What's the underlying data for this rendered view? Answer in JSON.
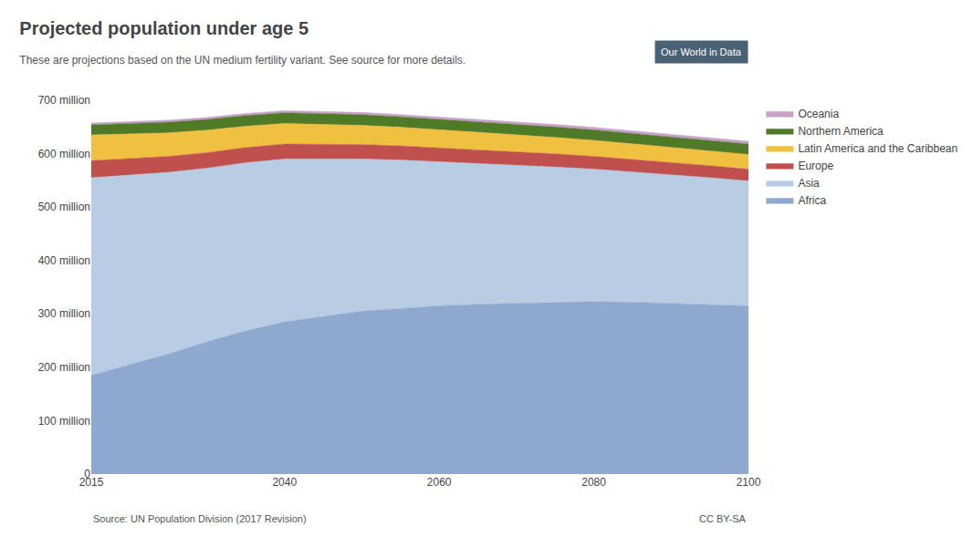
{
  "chart_data": {
    "type": "area",
    "stacked": true,
    "title": "Projected population under age 5",
    "subtitle": "These are projections based on the UN medium fertility variant. See source for more details.",
    "source": "Source: UN Population Division (2017 Revision)",
    "license": "CC BY-SA",
    "annotations": [
      "Our World in Data"
    ],
    "x": [
      2015,
      2020,
      2025,
      2030,
      2035,
      2040,
      2045,
      2050,
      2055,
      2060,
      2065,
      2070,
      2075,
      2080,
      2085,
      2090,
      2095,
      2100
    ],
    "series": [
      {
        "name": "Africa",
        "color": "#8fa8d0",
        "values": [
          185,
          205,
          225,
          248,
          268,
          285,
          295,
          305,
          310,
          315,
          318,
          320,
          322,
          323,
          322,
          320,
          318,
          315
        ]
      },
      {
        "name": "Asia",
        "color": "#b8cce4",
        "values": [
          370,
          355,
          340,
          325,
          315,
          305,
          295,
          285,
          278,
          270,
          263,
          258,
          253,
          248,
          244,
          240,
          237,
          234
        ]
      },
      {
        "name": "Europe",
        "color": "#c0504d",
        "values": [
          32,
          31,
          30,
          29,
          28.5,
          28,
          27.5,
          27,
          26.5,
          26,
          25.5,
          25,
          24.5,
          24,
          23.5,
          23,
          22.5,
          22
        ]
      },
      {
        "name": "Latin America and the Caribbean",
        "color": "#f0c040",
        "values": [
          48,
          46,
          44,
          42,
          40,
          38.5,
          37,
          36,
          35,
          34,
          33,
          32,
          31,
          30,
          29,
          28.5,
          28,
          27.5
        ]
      },
      {
        "name": "Northern America",
        "color": "#4f7a28",
        "values": [
          19,
          19.5,
          20,
          20,
          20,
          20,
          20,
          20,
          19.5,
          19.5,
          19.5,
          19.5,
          19.5,
          19.5,
          19.5,
          19.5,
          19.5,
          19.5
        ]
      },
      {
        "name": "Oceania",
        "color": "#c8a0c8",
        "values": [
          3.5,
          3.6,
          3.7,
          3.8,
          3.9,
          4.0,
          4.1,
          4.2,
          4.3,
          4.4,
          4.5,
          4.6,
          4.7,
          4.8,
          4.9,
          5.0,
          5.1,
          5.2
        ]
      }
    ],
    "xlim": [
      2015,
      2100
    ],
    "xticks": [
      2015,
      2040,
      2060,
      2080,
      2100
    ],
    "ylim": [
      0,
      700
    ],
    "yticks": [
      0,
      {
        "value": 100,
        "label": "100 million"
      },
      {
        "value": 200,
        "label": "200 million"
      },
      {
        "value": 300,
        "label": "300 million"
      },
      {
        "value": 400,
        "label": "400 million"
      },
      {
        "value": 500,
        "label": "500 million"
      },
      {
        "value": 600,
        "label": "600 million"
      },
      {
        "value": 700,
        "label": "700 million"
      }
    ],
    "grid": true
  }
}
